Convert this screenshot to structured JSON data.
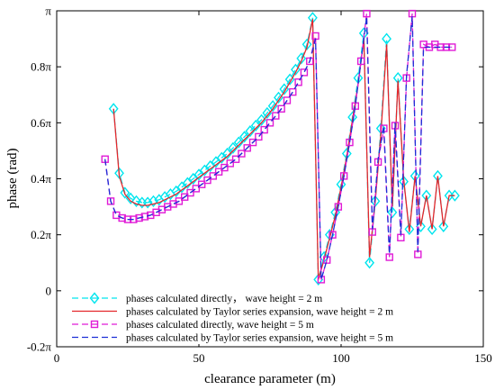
{
  "chart_data": {
    "type": "line",
    "xlabel": "clearance parameter (m)",
    "ylabel": "phase (rad)",
    "xlim": [
      0,
      150
    ],
    "ylim": [
      -0.2,
      1.0
    ],
    "y_unit": "pi rad",
    "x_ticks": [
      {
        "value": 0,
        "label": "0"
      },
      {
        "value": 50,
        "label": "50"
      },
      {
        "value": 100,
        "label": "100"
      },
      {
        "value": 150,
        "label": "150"
      }
    ],
    "y_ticks": [
      {
        "value": -0.2,
        "label": "-0.2π"
      },
      {
        "value": 0,
        "label": "0"
      },
      {
        "value": 0.2,
        "label": "0.2π"
      },
      {
        "value": 0.4,
        "label": "0.4π"
      },
      {
        "value": 0.6,
        "label": "0.6π"
      },
      {
        "value": 0.8,
        "label": "0.8π"
      },
      {
        "value": 1.0,
        "label": "π"
      }
    ],
    "grid": false,
    "legend_position": "bottom-left",
    "series": [
      {
        "name": "phases calculated directly， wave height = 2 m",
        "color": "#00e5ee",
        "line": "dash",
        "marker": "diamond",
        "x": [
          20,
          22,
          24,
          26,
          28,
          30,
          32,
          34,
          36,
          38,
          40,
          42,
          44,
          46,
          48,
          50,
          52,
          54,
          56,
          58,
          60,
          62,
          64,
          66,
          68,
          70,
          72,
          74,
          76,
          78,
          80,
          82,
          84,
          86,
          88,
          90,
          92,
          94,
          96,
          98,
          100,
          102,
          104,
          106,
          108,
          110,
          112,
          114,
          116,
          118,
          120,
          122,
          124,
          126,
          128,
          130,
          132,
          134,
          136,
          138,
          140
        ],
        "y": [
          0.65,
          0.42,
          0.35,
          0.33,
          0.32,
          0.315,
          0.315,
          0.32,
          0.325,
          0.335,
          0.345,
          0.355,
          0.37,
          0.385,
          0.4,
          0.415,
          0.43,
          0.445,
          0.46,
          0.475,
          0.49,
          0.51,
          0.53,
          0.55,
          0.57,
          0.59,
          0.61,
          0.635,
          0.66,
          0.69,
          0.72,
          0.755,
          0.79,
          0.83,
          0.88,
          0.975,
          0.04,
          0.12,
          0.2,
          0.28,
          0.38,
          0.49,
          0.62,
          0.76,
          0.92,
          0.1,
          0.32,
          0.58,
          0.9,
          0.28,
          0.76,
          0.39,
          0.22,
          0.41,
          0.23,
          0.34,
          0.22,
          0.41,
          0.23,
          0.34,
          0.34
        ]
      },
      {
        "name": "phases calculated by Taylor series expansion, wave height = 2 m",
        "color": "#e4262b",
        "line": "solid",
        "marker": "none",
        "x": [
          20,
          22,
          24,
          26,
          28,
          30,
          32,
          34,
          36,
          38,
          40,
          42,
          44,
          46,
          48,
          50,
          52,
          54,
          56,
          58,
          60,
          62,
          64,
          66,
          68,
          70,
          72,
          74,
          76,
          78,
          80,
          82,
          84,
          86,
          88,
          90,
          92,
          94,
          96,
          98,
          100,
          102,
          104,
          106,
          108,
          110,
          112,
          114,
          116,
          118,
          120,
          122,
          124,
          126,
          128,
          130,
          132,
          134,
          136,
          138,
          140
        ],
        "y": [
          0.65,
          0.41,
          0.345,
          0.32,
          0.31,
          0.305,
          0.305,
          0.31,
          0.315,
          0.325,
          0.335,
          0.345,
          0.36,
          0.375,
          0.39,
          0.405,
          0.42,
          0.435,
          0.45,
          0.465,
          0.48,
          0.5,
          0.52,
          0.54,
          0.56,
          0.58,
          0.6,
          0.625,
          0.65,
          0.68,
          0.71,
          0.745,
          0.78,
          0.82,
          0.87,
          0.97,
          0.04,
          0.11,
          0.19,
          0.27,
          0.37,
          0.48,
          0.61,
          0.74,
          0.9,
          0.12,
          0.32,
          0.56,
          0.88,
          0.3,
          0.75,
          0.4,
          0.21,
          0.41,
          0.23,
          0.34,
          0.22,
          0.41,
          0.23,
          0.34,
          0.34
        ]
      },
      {
        "name": "phases calculated directly, wave height = 5 m",
        "color": "#e01bd6",
        "line": "dash",
        "marker": "square",
        "x": [
          17,
          19,
          21,
          23,
          25,
          27,
          29,
          31,
          33,
          35,
          37,
          39,
          41,
          43,
          45,
          47,
          49,
          51,
          53,
          55,
          57,
          59,
          61,
          63,
          65,
          67,
          69,
          71,
          73,
          75,
          77,
          79,
          81,
          83,
          85,
          87,
          89,
          91,
          93,
          95,
          97,
          99,
          101,
          103,
          105,
          107,
          109,
          111,
          113,
          115,
          117,
          119,
          121,
          123,
          125,
          127,
          129,
          131,
          133,
          135,
          137,
          139
        ],
        "y": [
          0.47,
          0.32,
          0.27,
          0.26,
          0.255,
          0.255,
          0.26,
          0.265,
          0.27,
          0.28,
          0.29,
          0.3,
          0.31,
          0.32,
          0.335,
          0.35,
          0.365,
          0.38,
          0.395,
          0.41,
          0.425,
          0.44,
          0.455,
          0.47,
          0.49,
          0.51,
          0.53,
          0.55,
          0.575,
          0.6,
          0.625,
          0.65,
          0.68,
          0.71,
          0.745,
          0.78,
          0.82,
          0.91,
          0.04,
          0.11,
          0.2,
          0.3,
          0.41,
          0.53,
          0.66,
          0.82,
          0.99,
          0.21,
          0.46,
          0.58,
          0.12,
          0.59,
          0.19,
          0.76,
          0.99,
          0.13,
          0.88,
          0.87,
          0.88,
          0.87,
          0.87,
          0.87
        ]
      },
      {
        "name": "phases calculated by Taylor series expansion, wave height = 5 m",
        "color": "#1c2fd6",
        "line": "dash",
        "marker": "none",
        "x": [
          17,
          19,
          21,
          23,
          25,
          27,
          29,
          31,
          33,
          35,
          37,
          39,
          41,
          43,
          45,
          47,
          49,
          51,
          53,
          55,
          57,
          59,
          61,
          63,
          65,
          67,
          69,
          71,
          73,
          75,
          77,
          79,
          81,
          83,
          85,
          87,
          89,
          91,
          93,
          95,
          97,
          99,
          101,
          103,
          105,
          107,
          109,
          111,
          113,
          115,
          117,
          119,
          121,
          123,
          125,
          127,
          129,
          131,
          133,
          135,
          137,
          139
        ],
        "y": [
          0.47,
          0.32,
          0.27,
          0.26,
          0.255,
          0.255,
          0.26,
          0.265,
          0.27,
          0.28,
          0.29,
          0.3,
          0.31,
          0.32,
          0.335,
          0.35,
          0.365,
          0.38,
          0.395,
          0.41,
          0.425,
          0.44,
          0.455,
          0.47,
          0.49,
          0.51,
          0.53,
          0.55,
          0.575,
          0.6,
          0.625,
          0.65,
          0.68,
          0.71,
          0.745,
          0.78,
          0.82,
          0.9,
          0.04,
          0.11,
          0.2,
          0.3,
          0.41,
          0.53,
          0.66,
          0.82,
          0.98,
          0.22,
          0.47,
          0.59,
          0.13,
          0.6,
          0.2,
          0.77,
          0.98,
          0.14,
          0.87,
          0.87,
          0.87,
          0.87,
          0.87,
          0.87
        ]
      }
    ]
  }
}
